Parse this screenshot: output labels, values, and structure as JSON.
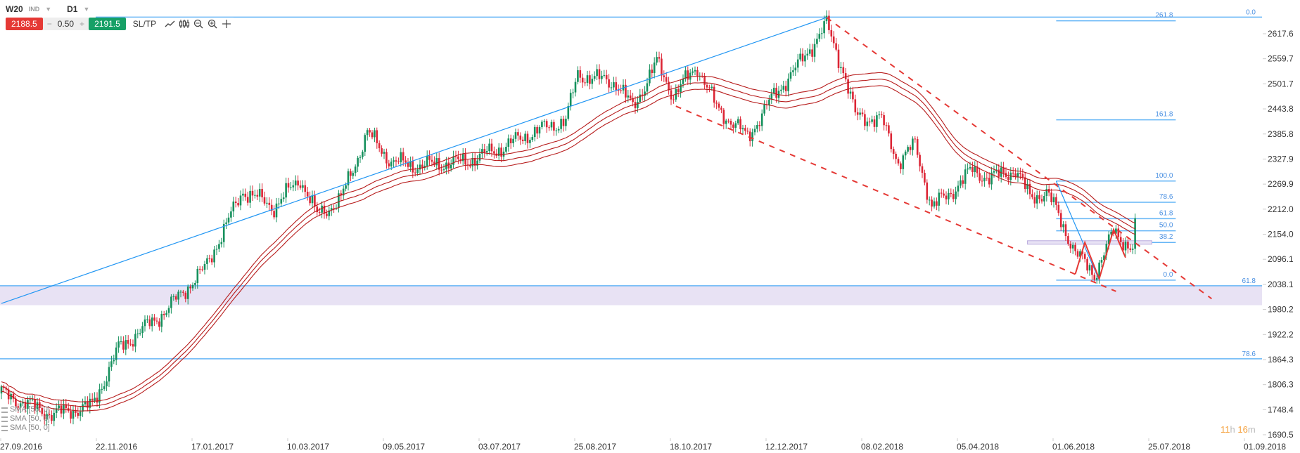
{
  "header": {
    "symbol": "W20",
    "symbol_type": "IND",
    "timeframe": "D1",
    "sell_price": "2188.5",
    "volume": "0.50",
    "minus": "−",
    "plus": "+",
    "buy_price": "2191.5",
    "sltp_label": "SL/TP"
  },
  "legend": [
    "SMA [50, 0]",
    "SMA [50, 0]",
    "SMA [50, 0]"
  ],
  "timer": {
    "hours": "11",
    "h": "h",
    "minutes": "16",
    "m": "m"
  },
  "colors": {
    "up": "#15905c",
    "down": "#dc2535",
    "sma": "#b71c1c",
    "fib": "#64b5f6",
    "trend": "#2196f3",
    "dashed": "#e53935",
    "band": "#e8e2f4"
  },
  "chart_data": {
    "type": "candlestick",
    "title": "W20 D1",
    "y_ticks": [
      "2617.6",
      "2559.7",
      "2501.7",
      "2443.8",
      "2385.8",
      "2327.9",
      "2269.9",
      "2212.0",
      "2154.0",
      "2096.1",
      "2038.1",
      "1980.2",
      "1922.2",
      "1864.3",
      "1806.3",
      "1748.4",
      "1690.5"
    ],
    "ylim": [
      1690.5,
      2617.6
    ],
    "x_ticks": [
      "27.09.2016",
      "22.11.2016",
      "17.01.2017",
      "10.03.2017",
      "09.05.2017",
      "03.07.2017",
      "25.08.2017",
      "18.10.2017",
      "12.12.2017",
      "08.02.2018",
      "05.04.2018",
      "01.06.2018",
      "25.07.2018",
      "01.09.2018"
    ],
    "close_path": [
      [
        0,
        1786
      ],
      [
        21,
        1738
      ],
      [
        38,
        1757
      ],
      [
        49,
        1890
      ],
      [
        69,
        1978
      ],
      [
        76,
        2022
      ],
      [
        85,
        2074
      ],
      [
        101,
        2255
      ],
      [
        114,
        2217
      ],
      [
        125,
        2283
      ],
      [
        132,
        2197
      ],
      [
        142,
        2236
      ],
      [
        153,
        2389
      ],
      [
        163,
        2322
      ],
      [
        174,
        2312
      ],
      [
        194,
        2322
      ],
      [
        208,
        2351
      ],
      [
        222,
        2389
      ],
      [
        236,
        2418
      ],
      [
        241,
        2523
      ],
      [
        257,
        2504
      ],
      [
        264,
        2447
      ],
      [
        274,
        2551
      ],
      [
        281,
        2475
      ],
      [
        291,
        2543
      ],
      [
        299,
        2447
      ],
      [
        312,
        2379
      ],
      [
        323,
        2475
      ],
      [
        333,
        2543
      ],
      [
        345,
        2639
      ],
      [
        352,
        2533
      ],
      [
        357,
        2428
      ],
      [
        368,
        2418
      ],
      [
        375,
        2322
      ],
      [
        382,
        2361
      ],
      [
        389,
        2217
      ],
      [
        396,
        2246
      ],
      [
        406,
        2303
      ],
      [
        413,
        2283
      ],
      [
        424,
        2303
      ],
      [
        430,
        2240
      ],
      [
        437,
        2250
      ],
      [
        441,
        2210
      ],
      [
        449,
        2111
      ],
      [
        457,
        2062
      ],
      [
        459,
        2085
      ],
      [
        465,
        2160
      ],
      [
        473,
        2120
      ],
      [
        474,
        2191
      ]
    ],
    "indicators": [
      {
        "name": "SMA [50, 0]",
        "offset_pct": -0.6
      },
      {
        "name": "SMA [50, 0]",
        "offset_pct": 0
      },
      {
        "name": "SMA [50, 0]",
        "offset_pct": 0.6
      }
    ],
    "fib_short": {
      "start_day": 441,
      "end_day": 491,
      "levels": [
        {
          "label": "261.8",
          "price": 2647.5
        },
        {
          "label": "161.8",
          "price": 2418.5
        },
        {
          "label": "100.0",
          "price": 2277
        },
        {
          "label": "78.6",
          "price": 2228
        },
        {
          "label": "61.8",
          "price": 2190
        },
        {
          "label": "50.0",
          "price": 2162
        },
        {
          "label": "38.2",
          "price": 2135
        },
        {
          "label": "0.0",
          "price": 2048
        }
      ]
    },
    "fib_long": [
      {
        "label": "0.0",
        "price": 2656
      },
      {
        "label": "61.8",
        "price": 2035
      },
      {
        "label": "78.6",
        "price": 1866
      }
    ],
    "zone": {
      "from": 1990,
      "to": 2035
    },
    "trendlines": [
      {
        "kind": "solid",
        "points": [
          [
            0,
            1994
          ],
          [
            345,
            2655
          ]
        ]
      },
      {
        "kind": "dashed",
        "points": [
          [
            345,
            2655
          ],
          [
            506,
            2005
          ]
        ]
      },
      {
        "kind": "dashed",
        "points": [
          [
            282,
            2450
          ],
          [
            466,
            2022
          ]
        ]
      },
      {
        "kind": "solid",
        "points": [
          [
            441,
            2277
          ],
          [
            459,
            2048
          ]
        ]
      },
      {
        "kind": "zigzag",
        "points": [
          [
            449,
            2062
          ],
          [
            453,
            2135
          ],
          [
            459,
            2051
          ],
          [
            465,
            2165
          ],
          [
            470,
            2100
          ]
        ]
      }
    ],
    "small_zone": {
      "start_day": 429,
      "end_day": 481,
      "from": 2131,
      "to": 2139
    }
  }
}
